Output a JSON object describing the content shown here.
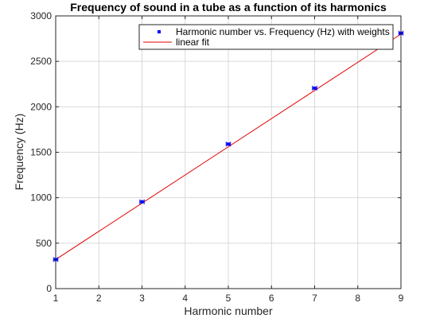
{
  "chart_data": {
    "type": "scatter",
    "title": "Frequency of sound in a tube as a function of its harmonics",
    "xlabel": "Harmonic number",
    "ylabel": "Frequency (Hz)",
    "xlim": [
      1,
      9
    ],
    "ylim": [
      0,
      3000
    ],
    "x_ticks": [
      1,
      2,
      3,
      4,
      5,
      6,
      7,
      8,
      9
    ],
    "y_ticks": [
      0,
      500,
      1000,
      1500,
      2000,
      2500,
      3000
    ],
    "grid": true,
    "legend_position": "top-right",
    "series": [
      {
        "name": "Harmonic number vs. Frequency (Hz) with weights",
        "kind": "points-with-errorbars",
        "color": "#0000ff",
        "x": [
          1,
          3,
          5,
          7,
          9
        ],
        "y": [
          320,
          955,
          1590,
          2205,
          2810
        ],
        "x_err": [
          0.05,
          0.05,
          0.05,
          0.05,
          0.05
        ]
      },
      {
        "name": "linear fit",
        "kind": "line",
        "color": "#e00000",
        "x": [
          1,
          9
        ],
        "y": [
          320,
          2800
        ]
      }
    ]
  }
}
